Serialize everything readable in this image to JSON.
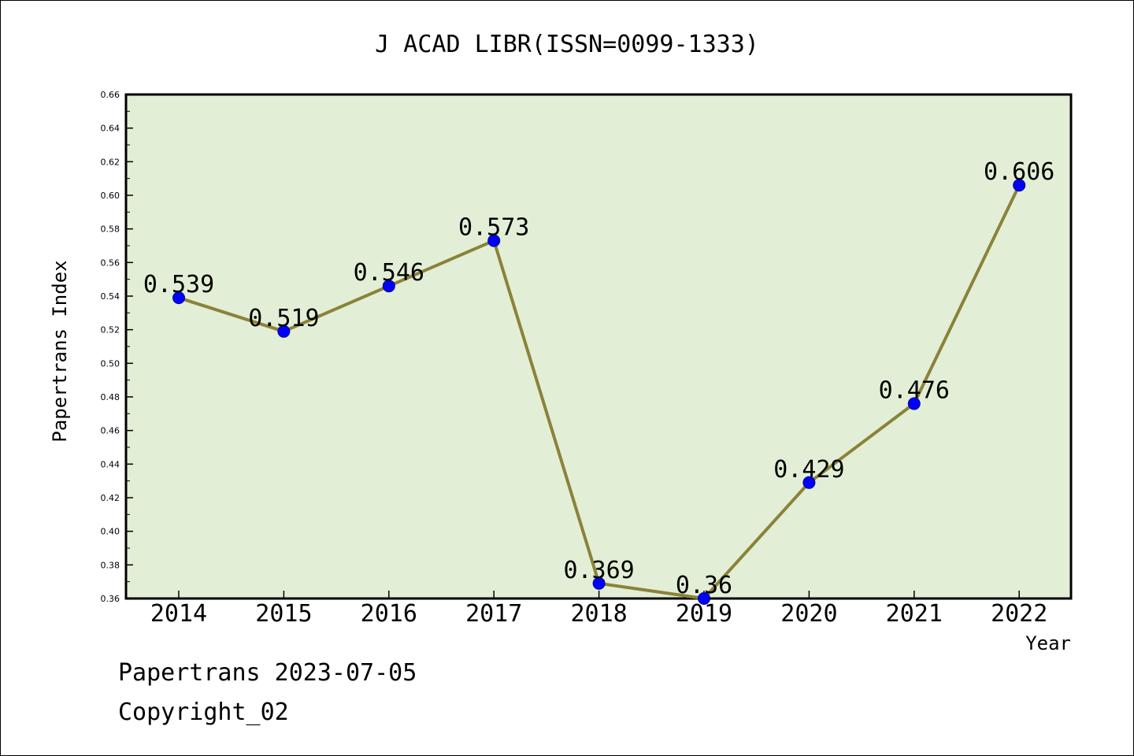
{
  "chart_data": {
    "type": "line",
    "title": "J ACAD LIBR(ISSN=0099-1333)",
    "xlabel": "Year",
    "ylabel": "Papertrans Index",
    "categories": [
      "2014",
      "2015",
      "2016",
      "2017",
      "2018",
      "2019",
      "2020",
      "2021",
      "2022"
    ],
    "series": [
      {
        "values": [
          0.539,
          0.519,
          0.546,
          0.573,
          0.369,
          0.36,
          0.429,
          0.476,
          0.606
        ],
        "labels": [
          "0.539",
          "0.519",
          "0.546",
          "0.573",
          "0.369",
          "0.36",
          "0.429",
          "0.476",
          "0.606"
        ],
        "line_color": "#8b8239",
        "marker_color": "#0000ff"
      }
    ],
    "ylim": [
      0.36,
      0.66
    ],
    "yticks": [
      "0.36",
      "0.38",
      "0.40",
      "0.42",
      "0.44",
      "0.46",
      "0.48",
      "0.50",
      "0.52",
      "0.54",
      "0.56",
      "0.58",
      "0.60",
      "0.62",
      "0.64",
      "0.66"
    ],
    "grid": false,
    "legend": "none",
    "plot_background": "#e2efd6"
  },
  "footer": {
    "line1": "Papertrans 2023-07-05",
    "line2": "Copyright_02"
  }
}
